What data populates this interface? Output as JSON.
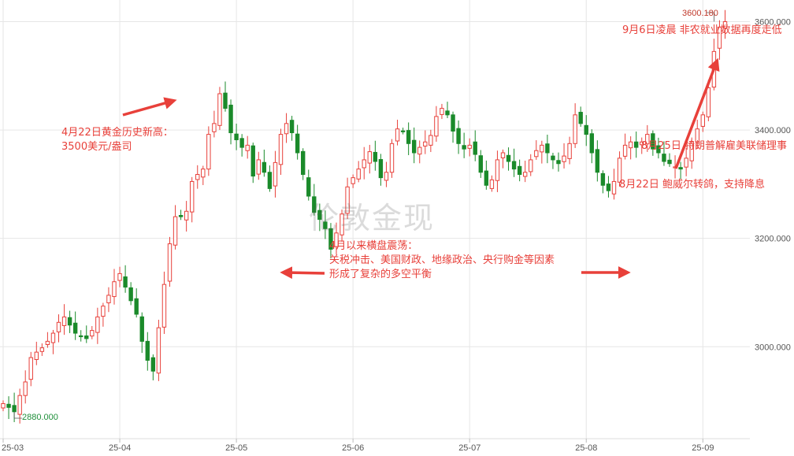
{
  "chart_data": {
    "type": "candlestick",
    "ylim": [
      2855,
      3640
    ],
    "y_ticks": [
      {
        "value": 3000,
        "label": "3000.000"
      },
      {
        "value": 3200,
        "label": "3200.000"
      },
      {
        "value": 3400,
        "label": "3400.000"
      },
      {
        "value": 3600,
        "label": "3600.000"
      }
    ],
    "x_ticks": [
      "25-03",
      "25-04",
      "25-05",
      "25-06",
      "25-07",
      "25-08",
      "25-09"
    ],
    "x_tick_index": [
      0,
      21,
      42,
      63,
      84,
      105,
      126
    ],
    "colors": {
      "up": "#e8403a",
      "down": "#1a8a2a",
      "grid": "#e6e6e6",
      "annotation": "#e8403a"
    },
    "max_label": "3600.180",
    "min_label": "2880.000",
    "max_point": {
      "index": 128,
      "value": 3600.18
    },
    "min_point": {
      "index": 2,
      "value": 2880
    },
    "annotations": [
      {
        "id": "record",
        "lines": [
          "4月22日黄金历史新高：",
          "3500美元/盎司"
        ]
      },
      {
        "id": "range",
        "lines": [
          "4月以来横盘震荡：",
          "关税冲击、美国财政、地缘政治、央行购金等因素",
          "形成了复杂的多空平衡"
        ]
      },
      {
        "id": "aug22",
        "lines": [
          "8月22日 鲍威尔转鸽，支持降息"
        ]
      },
      {
        "id": "aug25",
        "lines": [
          "8月25日 特朗普解雇美联储理事"
        ]
      },
      {
        "id": "sep6",
        "lines": [
          "9月6日凌晨 非农就业数据再度走低"
        ]
      }
    ],
    "closes": [
      2895,
      2888,
      2880,
      2910,
      2935,
      2980,
      2990,
      2998,
      3010,
      3025,
      3045,
      3055,
      3040,
      3025,
      3020,
      3015,
      3030,
      3055,
      3075,
      3095,
      3120,
      3135,
      3110,
      3085,
      3060,
      3010,
      2975,
      2955,
      3035,
      3115,
      3190,
      3240,
      3240,
      3250,
      3305,
      3318,
      3328,
      3392,
      3412,
      3467,
      3440,
      3395,
      3382,
      3368,
      3372,
      3315,
      3345,
      3322,
      3292,
      3340,
      3392,
      3412,
      3395,
      3358,
      3318,
      3278,
      3248,
      3235,
      3218,
      3180,
      3210,
      3245,
      3295,
      3312,
      3328,
      3345,
      3360,
      3342,
      3312,
      3322,
      3375,
      3402,
      3398,
      3375,
      3358,
      3368,
      3378,
      3390,
      3425,
      3440,
      3428,
      3398,
      3375,
      3365,
      3372,
      3355,
      3322,
      3298,
      3308,
      3345,
      3358,
      3342,
      3328,
      3318,
      3322,
      3345,
      3362,
      3372,
      3358,
      3345,
      3338,
      3352,
      3375,
      3428,
      3412,
      3392,
      3358,
      3322,
      3298,
      3288,
      3305,
      3348,
      3372,
      3378,
      3368,
      3378,
      3392,
      3365,
      3358,
      3342,
      3338,
      3332,
      3328,
      3348,
      3378,
      3402,
      3428,
      3478,
      3545,
      3590,
      3600
    ]
  }
}
